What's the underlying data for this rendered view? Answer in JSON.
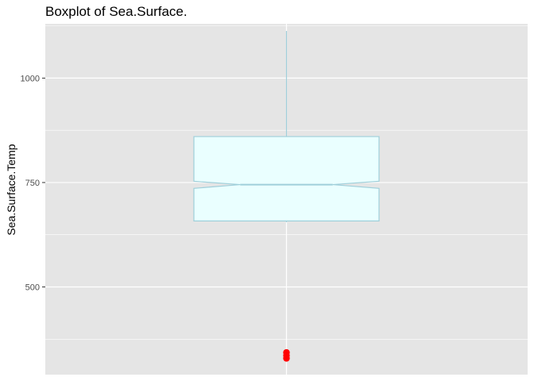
{
  "chart_data": {
    "type": "boxplot",
    "title": "Boxplot of Sea.Surface.",
    "xlabel": "",
    "ylabel": "Sea.Surface.Temp",
    "yticks": [
      500,
      750,
      1000
    ],
    "ylim": [
      290,
      1130
    ],
    "box": {
      "lower_whisker": 655,
      "q1": 658,
      "median": 745,
      "q3": 860,
      "upper_whisker": 1113,
      "notch_low": 736,
      "notch_high": 753
    },
    "outliers": [
      343,
      336,
      329
    ],
    "colors": {
      "panel": "#e5e5e5",
      "grid": "#ffffff",
      "box_fill": "#eaffff",
      "box_stroke": "#9fcfda",
      "outlier": "#ff0000"
    }
  }
}
